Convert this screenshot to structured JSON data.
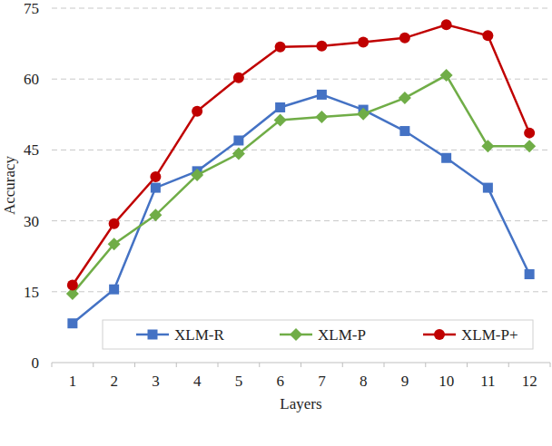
{
  "chart_data": {
    "type": "line",
    "x_label": "Layers",
    "y_label": "Accuracy",
    "categories": [
      "1",
      "2",
      "3",
      "4",
      "5",
      "6",
      "7",
      "8",
      "9",
      "10",
      "11",
      "12"
    ],
    "series": [
      {
        "name": "XLM-R",
        "color": "#4472c4",
        "marker": "square",
        "values": [
          8.3,
          15.5,
          37,
          40.5,
          47,
          54,
          56.7,
          53.5,
          49,
          43.3,
          37,
          18.7
        ]
      },
      {
        "name": "XLM-P",
        "color": "#70ad47",
        "marker": "diamond",
        "values": [
          14.6,
          25.1,
          31.2,
          39.7,
          44.2,
          51.3,
          52,
          52.6,
          56,
          60.8,
          45.8,
          45.8
        ]
      },
      {
        "name": "XLM-P+",
        "color": "#c00000",
        "marker": "circle",
        "values": [
          16.4,
          29.4,
          39.3,
          53.2,
          60.3,
          66.8,
          67,
          67.8,
          68.7,
          71.5,
          69.2,
          48.6
        ]
      }
    ],
    "ylim": [
      0,
      75
    ],
    "yticks": [
      0,
      15,
      30,
      45,
      60,
      75
    ],
    "grid": true,
    "legend": "bottom"
  }
}
